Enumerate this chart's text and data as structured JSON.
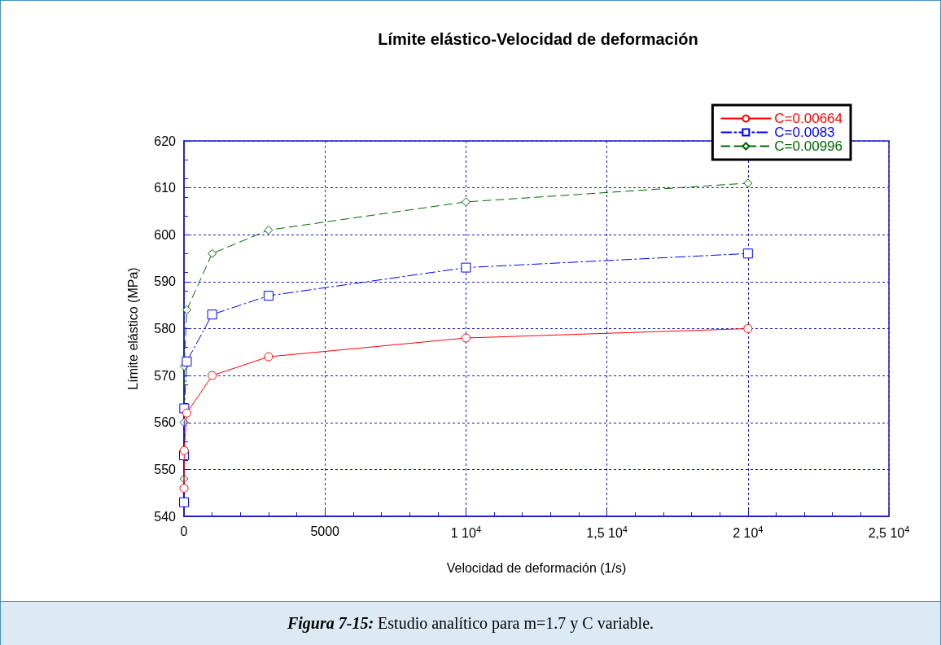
{
  "chart_data": {
    "type": "line",
    "title": "Límite elástico-Velocidad de deformación",
    "xlabel": "Velocidad de deformación (1/s)",
    "ylabel": "Límite elástico (MPa)",
    "annotations": [
      "Figura 7-15: Estudio analítico para m=1.7 y C variable."
    ],
    "xlim": [
      0,
      25000
    ],
    "xticks": [
      0,
      5000,
      {
        "value": 10000,
        "label": "1 10$^{4}$"
      },
      {
        "value": 15000,
        "label": "1,5 10$^{4}$"
      },
      {
        "value": 20000,
        "label": "2 10$^{4}$"
      },
      {
        "value": 25000,
        "label": "2,5 10$^{4}$"
      }
    ],
    "ylim": [
      540,
      620
    ],
    "yticks": [
      540,
      550,
      560,
      570,
      580,
      590,
      600,
      610,
      620
    ],
    "grid": true,
    "legend": "top right",
    "series": [
      {
        "name": "C=0.00664",
        "color": "#ff0000",
        "marker": "circle",
        "line_style": "solid",
        "x": [
          1,
          10,
          100,
          1000,
          3000,
          10000,
          20000
        ],
        "values": [
          546,
          554,
          562,
          570,
          574,
          578,
          580
        ]
      },
      {
        "name": "C=0.0083",
        "color": "#0000ff",
        "marker": "square",
        "line_style": "dashdot",
        "x": [
          0.1,
          1,
          10,
          100,
          1000,
          3000,
          10000,
          20000
        ],
        "values": [
          543,
          553,
          563,
          573,
          583,
          587,
          593,
          596
        ]
      },
      {
        "name": "C=0.00996",
        "color": "#006600",
        "marker": "diamond",
        "line_style": "dashed",
        "x": [
          0.1,
          1,
          10,
          100,
          1000,
          3000,
          10000,
          20000
        ],
        "values": [
          548,
          560,
          572,
          584,
          596,
          601,
          607,
          611
        ]
      }
    ]
  }
}
